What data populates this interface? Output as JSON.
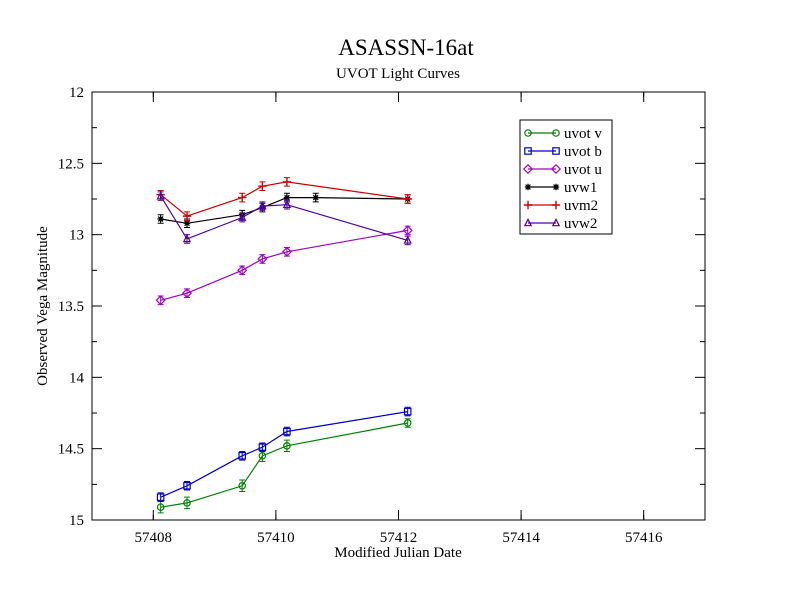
{
  "chart_data": {
    "type": "line",
    "title": "ASASSN-16at",
    "subtitle": "UVOT Light Curves",
    "xlabel": "Modified Julian Date",
    "ylabel": "Observed Vega Magnitude",
    "xlim": [
      57407,
      57417
    ],
    "ylim": [
      15,
      12
    ],
    "y_inverted": true,
    "x_ticks": [
      57408,
      57410,
      57412,
      57414,
      57416
    ],
    "y_ticks": [
      12,
      12.5,
      13,
      13.5,
      14,
      14.5,
      15
    ],
    "x_tick_labels": [
      "57408",
      "57410",
      "57412",
      "57414",
      "57416"
    ],
    "y_tick_labels": [
      "12",
      "12.5",
      "13",
      "13.5",
      "14",
      "14.5",
      "15"
    ],
    "grid": false,
    "legend_position": "top-right",
    "series": [
      {
        "name": "uvot v",
        "color": "#008000",
        "marker": "circle",
        "x": [
          57408.12,
          57408.55,
          57409.45,
          57409.78,
          57410.18,
          57412.15
        ],
        "y": [
          14.91,
          14.88,
          14.76,
          14.55,
          14.48,
          14.32
        ],
        "err": [
          0.04,
          0.04,
          0.04,
          0.04,
          0.04,
          0.03
        ]
      },
      {
        "name": "uvot b",
        "color": "#0000cc",
        "marker": "square",
        "x": [
          57408.12,
          57408.55,
          57409.45,
          57409.78,
          57410.18,
          57412.15
        ],
        "y": [
          14.84,
          14.76,
          14.55,
          14.49,
          14.38,
          14.24
        ],
        "err": [
          0.03,
          0.03,
          0.03,
          0.03,
          0.03,
          0.03
        ]
      },
      {
        "name": "uvot u",
        "color": "#a000c8",
        "marker": "diamond",
        "x": [
          57408.12,
          57408.55,
          57409.45,
          57409.78,
          57410.18,
          57412.15
        ],
        "y": [
          13.46,
          13.41,
          13.25,
          13.17,
          13.12,
          12.97
        ],
        "err": [
          0.03,
          0.03,
          0.03,
          0.03,
          0.03,
          0.03
        ]
      },
      {
        "name": "uvw1",
        "color": "#000000",
        "marker": "star",
        "x": [
          57408.12,
          57408.55,
          57409.45,
          57409.78,
          57410.18,
          57410.65,
          57412.15
        ],
        "y": [
          12.89,
          12.92,
          12.86,
          12.81,
          12.74,
          12.74,
          12.75
        ],
        "err": [
          0.03,
          0.03,
          0.03,
          0.03,
          0.03,
          0.03,
          0.03
        ]
      },
      {
        "name": "uvm2",
        "color": "#d00000",
        "marker": "plus",
        "x": [
          57408.12,
          57408.55,
          57409.45,
          57409.78,
          57410.18,
          57412.15
        ],
        "y": [
          12.72,
          12.87,
          12.74,
          12.66,
          12.63,
          12.75
        ],
        "err": [
          0.03,
          0.03,
          0.03,
          0.03,
          0.03,
          0.03
        ]
      },
      {
        "name": "uvw2",
        "color": "#5000a0",
        "marker": "triangle",
        "x": [
          57408.12,
          57408.55,
          57409.45,
          57409.78,
          57410.18,
          57412.15
        ],
        "y": [
          12.73,
          13.03,
          12.88,
          12.8,
          12.79,
          13.04
        ],
        "err": [
          0.03,
          0.03,
          0.03,
          0.03,
          0.03,
          0.03
        ]
      }
    ]
  }
}
